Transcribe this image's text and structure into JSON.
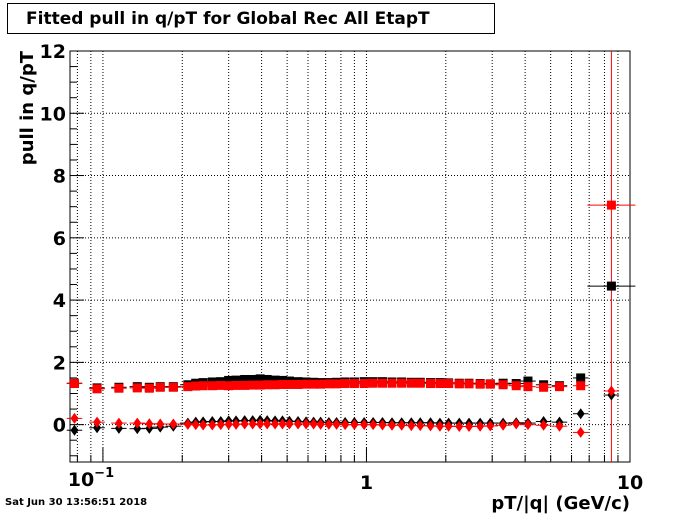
{
  "chart_data": {
    "type": "scatter",
    "title": "Fitted pull in q/pT for Global Rec All EtapT",
    "xlabel": "pT/|q| (GeV/c)",
    "ylabel": "pull in q/pT",
    "xscale": "log",
    "xlim": [
      0.075,
      10
    ],
    "ylim": [
      -1.2,
      12
    ],
    "grid": true,
    "x_tick_labels": [
      "10⁻¹",
      "1",
      "10"
    ],
    "x_tick_label_texts": {
      "base": "10",
      "exp": "−1"
    },
    "y_tick_labels": [
      "0",
      "2",
      "4",
      "6",
      "8",
      "10",
      "12"
    ],
    "timestamp": "Sat Jun 30 13:56:51 2018",
    "series": [
      {
        "color": "#000000",
        "marker": "square",
        "points": [
          [
            0.078,
            1.33
          ],
          [
            0.095,
            1.18
          ],
          [
            0.115,
            1.2
          ],
          [
            0.135,
            1.22
          ],
          [
            0.15,
            1.2
          ],
          [
            0.165,
            1.22
          ],
          [
            0.185,
            1.22
          ],
          [
            0.21,
            1.28
          ],
          [
            0.225,
            1.33
          ],
          [
            0.24,
            1.35
          ],
          [
            0.26,
            1.37
          ],
          [
            0.28,
            1.38
          ],
          [
            0.3,
            1.42
          ],
          [
            0.32,
            1.43
          ],
          [
            0.345,
            1.45
          ],
          [
            0.37,
            1.45
          ],
          [
            0.395,
            1.47
          ],
          [
            0.42,
            1.45
          ],
          [
            0.45,
            1.43
          ],
          [
            0.48,
            1.42
          ],
          [
            0.51,
            1.4
          ],
          [
            0.55,
            1.38
          ],
          [
            0.59,
            1.37
          ],
          [
            0.63,
            1.36
          ],
          [
            0.67,
            1.35
          ],
          [
            0.72,
            1.35
          ],
          [
            0.77,
            1.36
          ],
          [
            0.83,
            1.37
          ],
          [
            0.9,
            1.37
          ],
          [
            0.98,
            1.38
          ],
          [
            1.06,
            1.38
          ],
          [
            1.15,
            1.38
          ],
          [
            1.25,
            1.37
          ],
          [
            1.36,
            1.37
          ],
          [
            1.48,
            1.36
          ],
          [
            1.6,
            1.36
          ],
          [
            1.75,
            1.35
          ],
          [
            1.9,
            1.35
          ],
          [
            2.05,
            1.34
          ],
          [
            2.25,
            1.33
          ],
          [
            2.45,
            1.33
          ],
          [
            2.7,
            1.32
          ],
          [
            2.95,
            1.31
          ],
          [
            3.3,
            1.33
          ],
          [
            3.7,
            1.32
          ],
          [
            4.1,
            1.4
          ],
          [
            4.7,
            1.28
          ],
          [
            5.4,
            1.25
          ],
          [
            6.5,
            1.5
          ],
          [
            8.5,
            4.45
          ]
        ]
      },
      {
        "color": "#ff0000",
        "marker": "square",
        "points": [
          [
            0.078,
            1.32
          ],
          [
            0.095,
            1.15
          ],
          [
            0.115,
            1.17
          ],
          [
            0.135,
            1.18
          ],
          [
            0.15,
            1.17
          ],
          [
            0.165,
            1.2
          ],
          [
            0.185,
            1.2
          ],
          [
            0.21,
            1.22
          ],
          [
            0.225,
            1.24
          ],
          [
            0.24,
            1.25
          ],
          [
            0.26,
            1.25
          ],
          [
            0.28,
            1.26
          ],
          [
            0.3,
            1.25
          ],
          [
            0.32,
            1.26
          ],
          [
            0.345,
            1.26
          ],
          [
            0.37,
            1.27
          ],
          [
            0.395,
            1.27
          ],
          [
            0.42,
            1.28
          ],
          [
            0.45,
            1.28
          ],
          [
            0.48,
            1.29
          ],
          [
            0.51,
            1.29
          ],
          [
            0.55,
            1.29
          ],
          [
            0.59,
            1.3
          ],
          [
            0.63,
            1.3
          ],
          [
            0.67,
            1.3
          ],
          [
            0.72,
            1.31
          ],
          [
            0.77,
            1.31
          ],
          [
            0.83,
            1.32
          ],
          [
            0.9,
            1.32
          ],
          [
            0.98,
            1.32
          ],
          [
            1.06,
            1.33
          ],
          [
            1.15,
            1.33
          ],
          [
            1.25,
            1.33
          ],
          [
            1.36,
            1.33
          ],
          [
            1.48,
            1.33
          ],
          [
            1.6,
            1.33
          ],
          [
            1.75,
            1.32
          ],
          [
            1.9,
            1.32
          ],
          [
            2.05,
            1.32
          ],
          [
            2.25,
            1.31
          ],
          [
            2.45,
            1.31
          ],
          [
            2.7,
            1.3
          ],
          [
            2.95,
            1.3
          ],
          [
            3.3,
            1.28
          ],
          [
            3.7,
            1.25
          ],
          [
            4.1,
            1.22
          ],
          [
            4.7,
            1.2
          ],
          [
            5.4,
            1.22
          ],
          [
            6.5,
            1.25
          ],
          [
            8.5,
            7.05
          ]
        ]
      },
      {
        "color": "#000000",
        "marker": "diamond",
        "points": [
          [
            0.078,
            -0.18
          ],
          [
            0.095,
            -0.1
          ],
          [
            0.115,
            -0.12
          ],
          [
            0.135,
            -0.13
          ],
          [
            0.15,
            -0.12
          ],
          [
            0.165,
            -0.08
          ],
          [
            0.185,
            -0.05
          ],
          [
            0.21,
            0.05
          ],
          [
            0.225,
            0.08
          ],
          [
            0.24,
            0.09
          ],
          [
            0.26,
            0.1
          ],
          [
            0.28,
            0.1
          ],
          [
            0.3,
            0.12
          ],
          [
            0.32,
            0.12
          ],
          [
            0.345,
            0.13
          ],
          [
            0.37,
            0.13
          ],
          [
            0.395,
            0.14
          ],
          [
            0.42,
            0.13
          ],
          [
            0.45,
            0.12
          ],
          [
            0.48,
            0.12
          ],
          [
            0.51,
            0.11
          ],
          [
            0.55,
            0.1
          ],
          [
            0.59,
            0.09
          ],
          [
            0.63,
            0.08
          ],
          [
            0.67,
            0.08
          ],
          [
            0.72,
            0.07
          ],
          [
            0.77,
            0.07
          ],
          [
            0.83,
            0.07
          ],
          [
            0.9,
            0.07
          ],
          [
            0.98,
            0.07
          ],
          [
            1.06,
            0.07
          ],
          [
            1.15,
            0.07
          ],
          [
            1.25,
            0.06
          ],
          [
            1.36,
            0.06
          ],
          [
            1.48,
            0.06
          ],
          [
            1.6,
            0.06
          ],
          [
            1.75,
            0.06
          ],
          [
            1.9,
            0.05
          ],
          [
            2.05,
            0.05
          ],
          [
            2.25,
            0.05
          ],
          [
            2.45,
            0.05
          ],
          [
            2.7,
            0.05
          ],
          [
            2.95,
            0.05
          ],
          [
            3.3,
            0.05
          ],
          [
            3.7,
            0.06
          ],
          [
            4.1,
            0.05
          ],
          [
            4.7,
            0.1
          ],
          [
            5.4,
            0.08
          ],
          [
            6.5,
            0.35
          ],
          [
            8.5,
            0.95
          ]
        ]
      },
      {
        "color": "#ff0000",
        "marker": "diamond",
        "points": [
          [
            0.078,
            0.2
          ],
          [
            0.095,
            0.08
          ],
          [
            0.115,
            0.05
          ],
          [
            0.135,
            0.05
          ],
          [
            0.15,
            0.03
          ],
          [
            0.165,
            0.02
          ],
          [
            0.185,
            0.02
          ],
          [
            0.21,
            0.01
          ],
          [
            0.225,
            0.0
          ],
          [
            0.24,
            -0.01
          ],
          [
            0.26,
            -0.01
          ],
          [
            0.28,
            0.0
          ],
          [
            0.3,
            0.01
          ],
          [
            0.32,
            0.01
          ],
          [
            0.345,
            0.02
          ],
          [
            0.37,
            0.02
          ],
          [
            0.395,
            0.02
          ],
          [
            0.42,
            0.02
          ],
          [
            0.45,
            0.02
          ],
          [
            0.48,
            0.02
          ],
          [
            0.51,
            0.02
          ],
          [
            0.55,
            0.02
          ],
          [
            0.59,
            0.02
          ],
          [
            0.63,
            0.02
          ],
          [
            0.67,
            0.01
          ],
          [
            0.72,
            0.01
          ],
          [
            0.77,
            0.01
          ],
          [
            0.83,
            0.0
          ],
          [
            0.9,
            0.0
          ],
          [
            0.98,
            0.0
          ],
          [
            1.06,
            0.0
          ],
          [
            1.15,
            -0.01
          ],
          [
            1.25,
            -0.02
          ],
          [
            1.36,
            -0.02
          ],
          [
            1.48,
            -0.03
          ],
          [
            1.6,
            -0.03
          ],
          [
            1.75,
            -0.04
          ],
          [
            1.9,
            -0.05
          ],
          [
            2.05,
            -0.05
          ],
          [
            2.25,
            -0.06
          ],
          [
            2.45,
            -0.06
          ],
          [
            2.7,
            -0.05
          ],
          [
            2.95,
            -0.04
          ],
          [
            3.3,
            -0.02
          ],
          [
            3.7,
            0.02
          ],
          [
            4.1,
            0.0
          ],
          [
            4.7,
            -0.02
          ],
          [
            5.4,
            -0.05
          ],
          [
            6.5,
            -0.25
          ],
          [
            8.5,
            1.08
          ]
        ]
      }
    ],
    "errors": {
      "red_square_last_point_y_error": 12,
      "black_square_last_point_x_error": 1.0
    }
  }
}
